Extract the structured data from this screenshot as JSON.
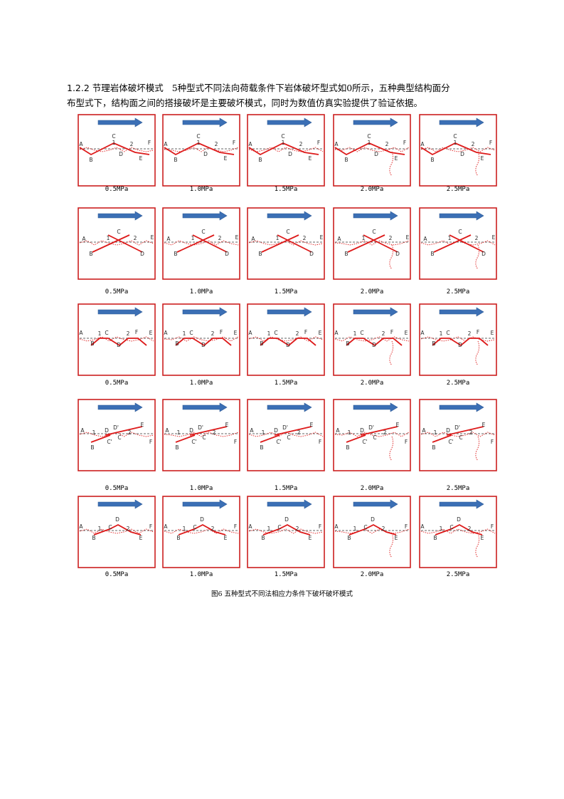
{
  "section": {
    "number": "1.2.2",
    "title": "节理岩体破坏模式",
    "text_line1": "5种型式不同法向荷载条件下岩体破坏型式如0所示，五种典型结构面分",
    "text_line2": "布型式下，结构面之间的搭接破坏是主要破坏模式，同时为数值仿真实验提供了验证依据。"
  },
  "figure": {
    "caption": "图6 五种型式不同法相应力条件下破坏破坏模式",
    "pressures": [
      "0.5MPa",
      "1.0MPa",
      "1.5MPa",
      "2.0MPa",
      "2.5MPa"
    ],
    "colors": {
      "frame": "#cc1f1f",
      "joint": "#dd1a1a",
      "arrow": "#3b6fb5",
      "dashed": "#333333",
      "label": "#2a2a2a"
    },
    "rows": [
      {
        "type": 1,
        "labels": [
          "A",
          "B",
          "1",
          "C",
          "D",
          "2",
          "E",
          "F"
        ]
      },
      {
        "type": 2,
        "labels": [
          "A",
          "B",
          "1",
          "C",
          "2",
          "D",
          "E"
        ]
      },
      {
        "type": 3,
        "labels": [
          "A",
          "B",
          "1",
          "C",
          "D",
          "2",
          "F",
          "E"
        ]
      },
      {
        "type": 4,
        "labels": [
          "A",
          "B",
          "1",
          "D",
          "C'",
          "D'",
          "C",
          "2",
          "E",
          "F"
        ]
      },
      {
        "type": 5,
        "labels": [
          "A",
          "B",
          "1",
          "C",
          "D",
          "2",
          "E",
          "F"
        ]
      }
    ]
  }
}
